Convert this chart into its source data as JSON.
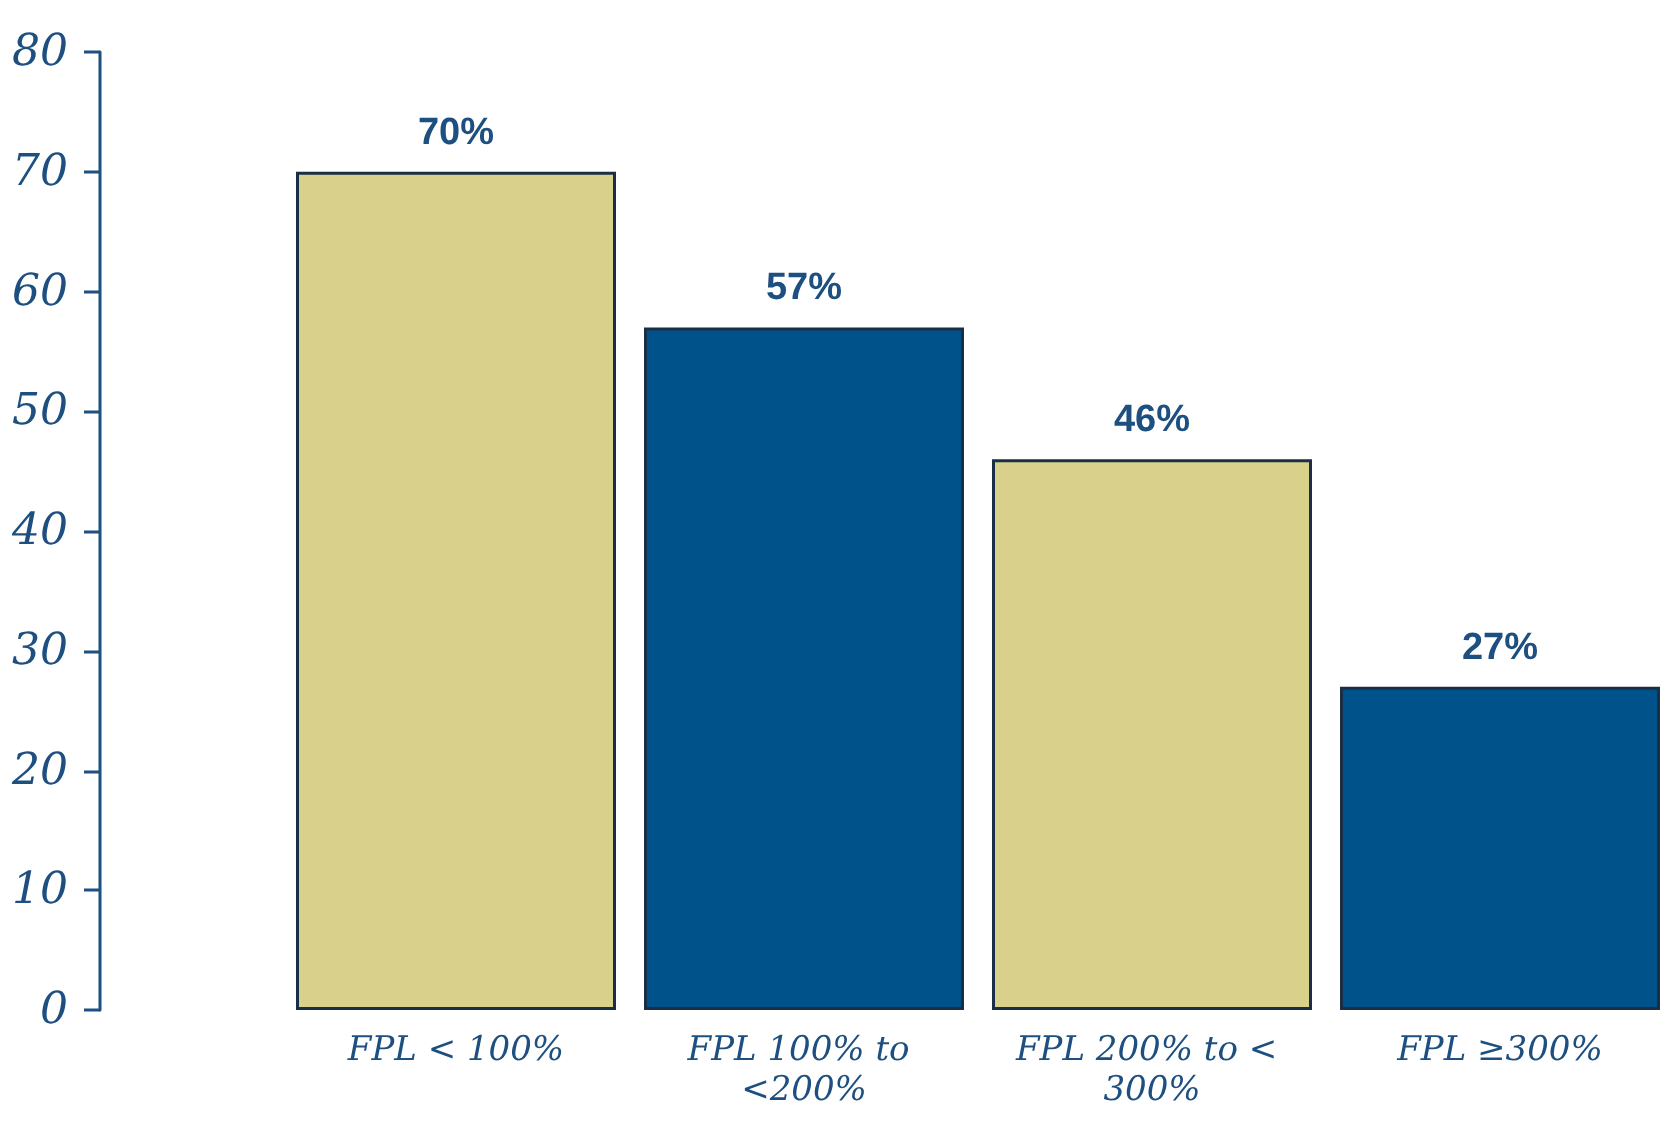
{
  "chart_data": {
    "type": "bar",
    "categories": [
      "FPL < 100%",
      "FPL 100% to <200%",
      "FPL 200% to < 300%",
      "FPL ≥300%"
    ],
    "values": [
      70,
      57,
      46,
      27
    ],
    "colors": [
      "#d9d18b",
      "#00528a",
      "#d9d18b",
      "#00528a"
    ],
    "value_labels": [
      "70%",
      "57%",
      "46%",
      "27%"
    ],
    "ylim": [
      0,
      80
    ],
    "yticks": [
      0,
      10,
      20,
      30,
      40,
      50,
      60,
      70,
      80
    ]
  }
}
